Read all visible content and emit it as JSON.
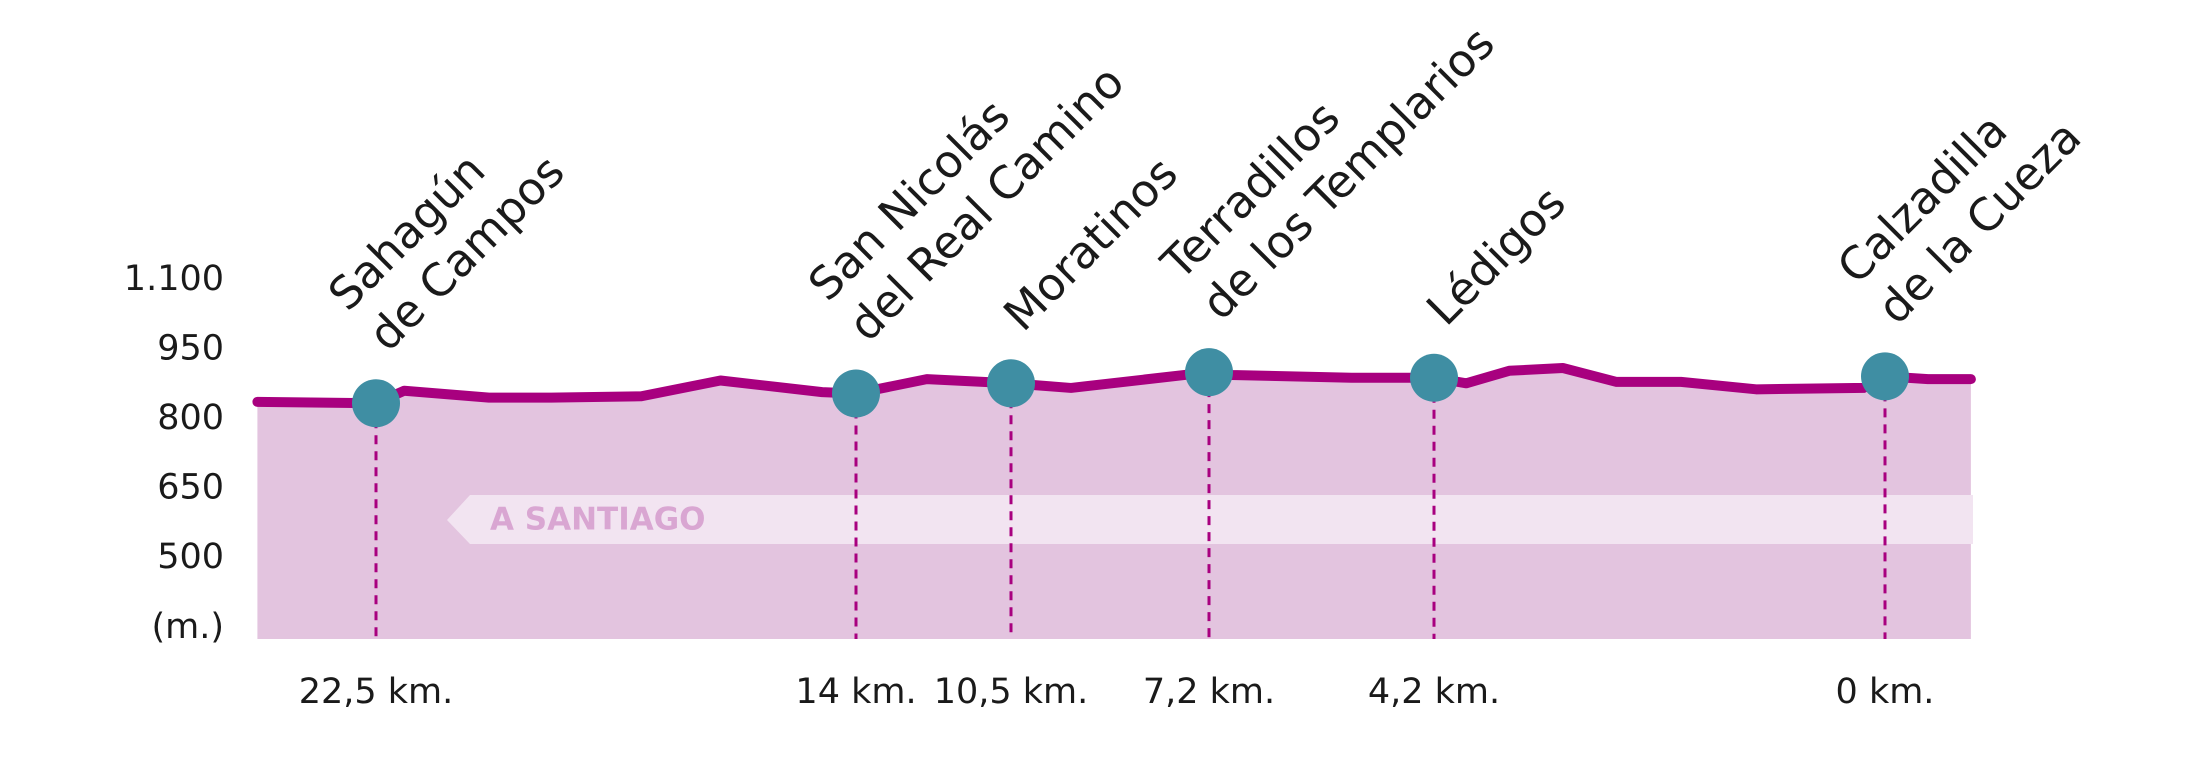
{
  "chart_data": {
    "type": "line",
    "ylabel": "(m.)",
    "ylim": [
      325,
      1100
    ],
    "yticks": [
      {
        "value": 1100,
        "label": "1.100"
      },
      950,
      800,
      650,
      500
    ],
    "xlim": [
      24.6,
      -0.8
    ],
    "xticks": [
      {
        "value": 22.5,
        "label": "22,5 km."
      },
      {
        "value": 14,
        "label": "14 km."
      },
      {
        "value": 10.5,
        "label": "10,5 km."
      },
      {
        "value": 7.2,
        "label": "7,2 km."
      },
      {
        "value": 4.2,
        "label": "4,2 km."
      },
      {
        "value": 0,
        "label": "0 km."
      }
    ],
    "area_color": "#e3c4df",
    "series": [
      {
        "color": "#a8007f",
        "x": [
          24.6,
          22.5,
          22.0,
          20.5,
          19.4,
          17.8,
          16.4,
          14.6,
          14,
          12.4,
          10.5,
          9.5,
          7.2,
          6.9,
          5.3,
          4.2,
          3.9,
          3.5,
          3.0,
          2.5,
          1.9,
          1.2,
          0.2,
          0,
          -0.4,
          -0.8
        ],
        "values": [
          837,
          834,
          861,
          846,
          846,
          849,
          883,
          858,
          855,
          886,
          877,
          867,
          901,
          895,
          889,
          889,
          877,
          904,
          910,
          880,
          880,
          864,
          867,
          892,
          886,
          886
        ]
      }
    ],
    "marker_color": "#3f8ea3",
    "stops": [
      {
        "label": [
          "Sahagún",
          "de Campos"
        ],
        "x": 22.5,
        "value": 834
      },
      {
        "label": [
          "San Nicolás",
          "del Real Camino"
        ],
        "x": 14,
        "value": 855
      },
      {
        "label": [
          "Moratinos"
        ],
        "x": 10.5,
        "value": 877
      },
      {
        "label": [
          "Terradillos",
          "de los Templarios"
        ],
        "x": 7.2,
        "value": 901
      },
      {
        "label": [
          "Lédigos"
        ],
        "x": 4.2,
        "value": 889
      },
      {
        "label": [
          "Calzadilla",
          "de la Cueza"
        ],
        "x": 0,
        "value": 892
      }
    ],
    "annotation": "A SANTIAGO"
  }
}
